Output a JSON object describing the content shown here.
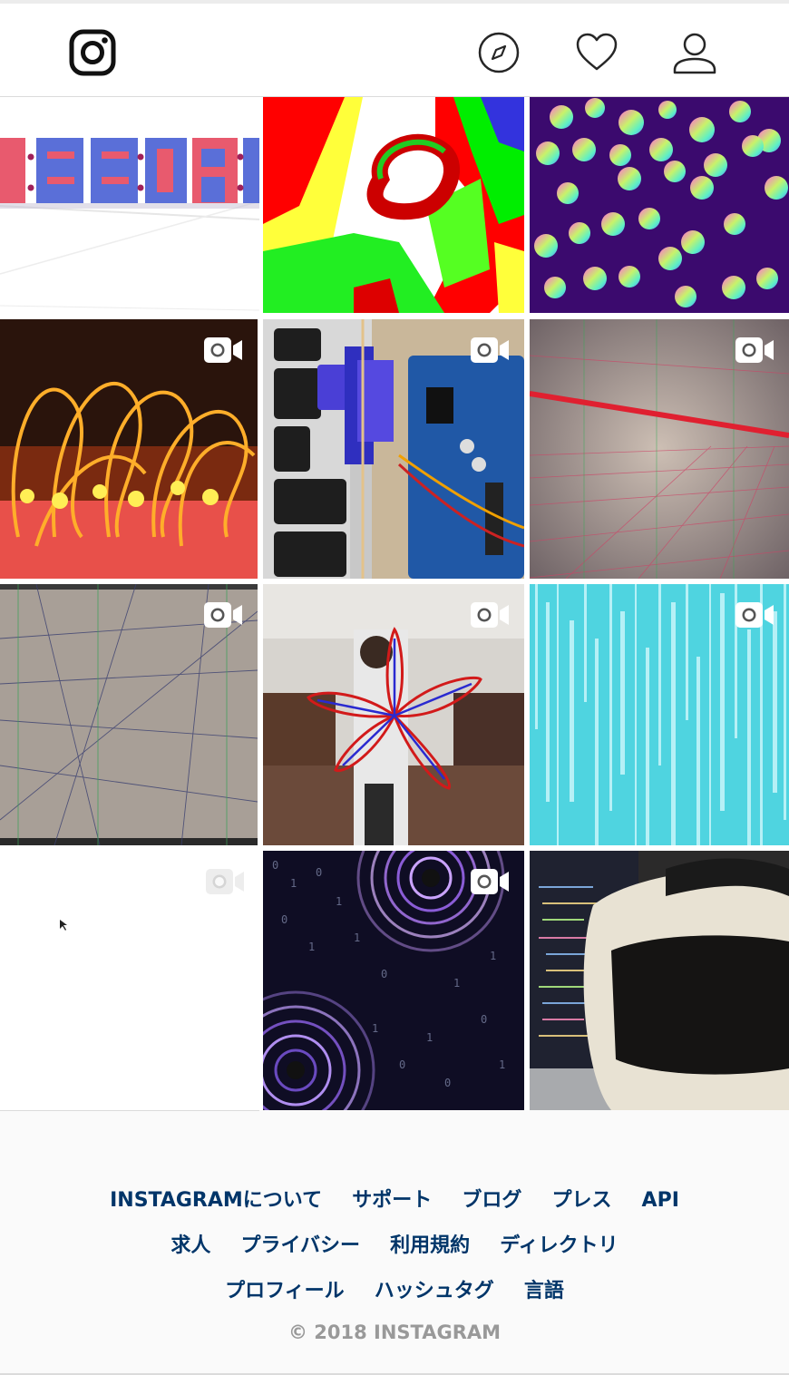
{
  "header": {
    "logo_icon": "instagram-logo-icon",
    "explore_icon": "compass-icon",
    "activity_icon": "heart-icon",
    "profile_icon": "user-icon"
  },
  "posts": [
    {
      "id": 1,
      "art": "digital-clock-3d",
      "video": false
    },
    {
      "id": 2,
      "art": "colorful-voxels",
      "video": false
    },
    {
      "id": 3,
      "art": "rainbow-spheres",
      "video": false
    },
    {
      "id": 4,
      "art": "glowing-led-wires",
      "video": true
    },
    {
      "id": 5,
      "art": "servo-arduino",
      "video": true
    },
    {
      "id": 6,
      "art": "red-grid-lines",
      "video": true
    },
    {
      "id": 7,
      "art": "grey-grid-lines",
      "video": true
    },
    {
      "id": 8,
      "art": "person-flower-drawing",
      "video": true
    },
    {
      "id": 9,
      "art": "cyan-rain",
      "video": true
    },
    {
      "id": 10,
      "art": "blank-white",
      "video": true
    },
    {
      "id": 11,
      "art": "binary-vortex",
      "video": true
    },
    {
      "id": 12,
      "art": "vr-headset-laptop",
      "video": false
    }
  ],
  "footer": {
    "links_row1": [
      "INSTAGRAMについて",
      "サポート",
      "ブログ",
      "プレス",
      "API"
    ],
    "links_row2": [
      "求人",
      "プライバシー",
      "利用規約",
      "ディレクトリ"
    ],
    "links_row3": [
      "プロフィール",
      "ハッシュタグ",
      "言語"
    ],
    "copyright": "© 2018 INSTAGRAM"
  }
}
